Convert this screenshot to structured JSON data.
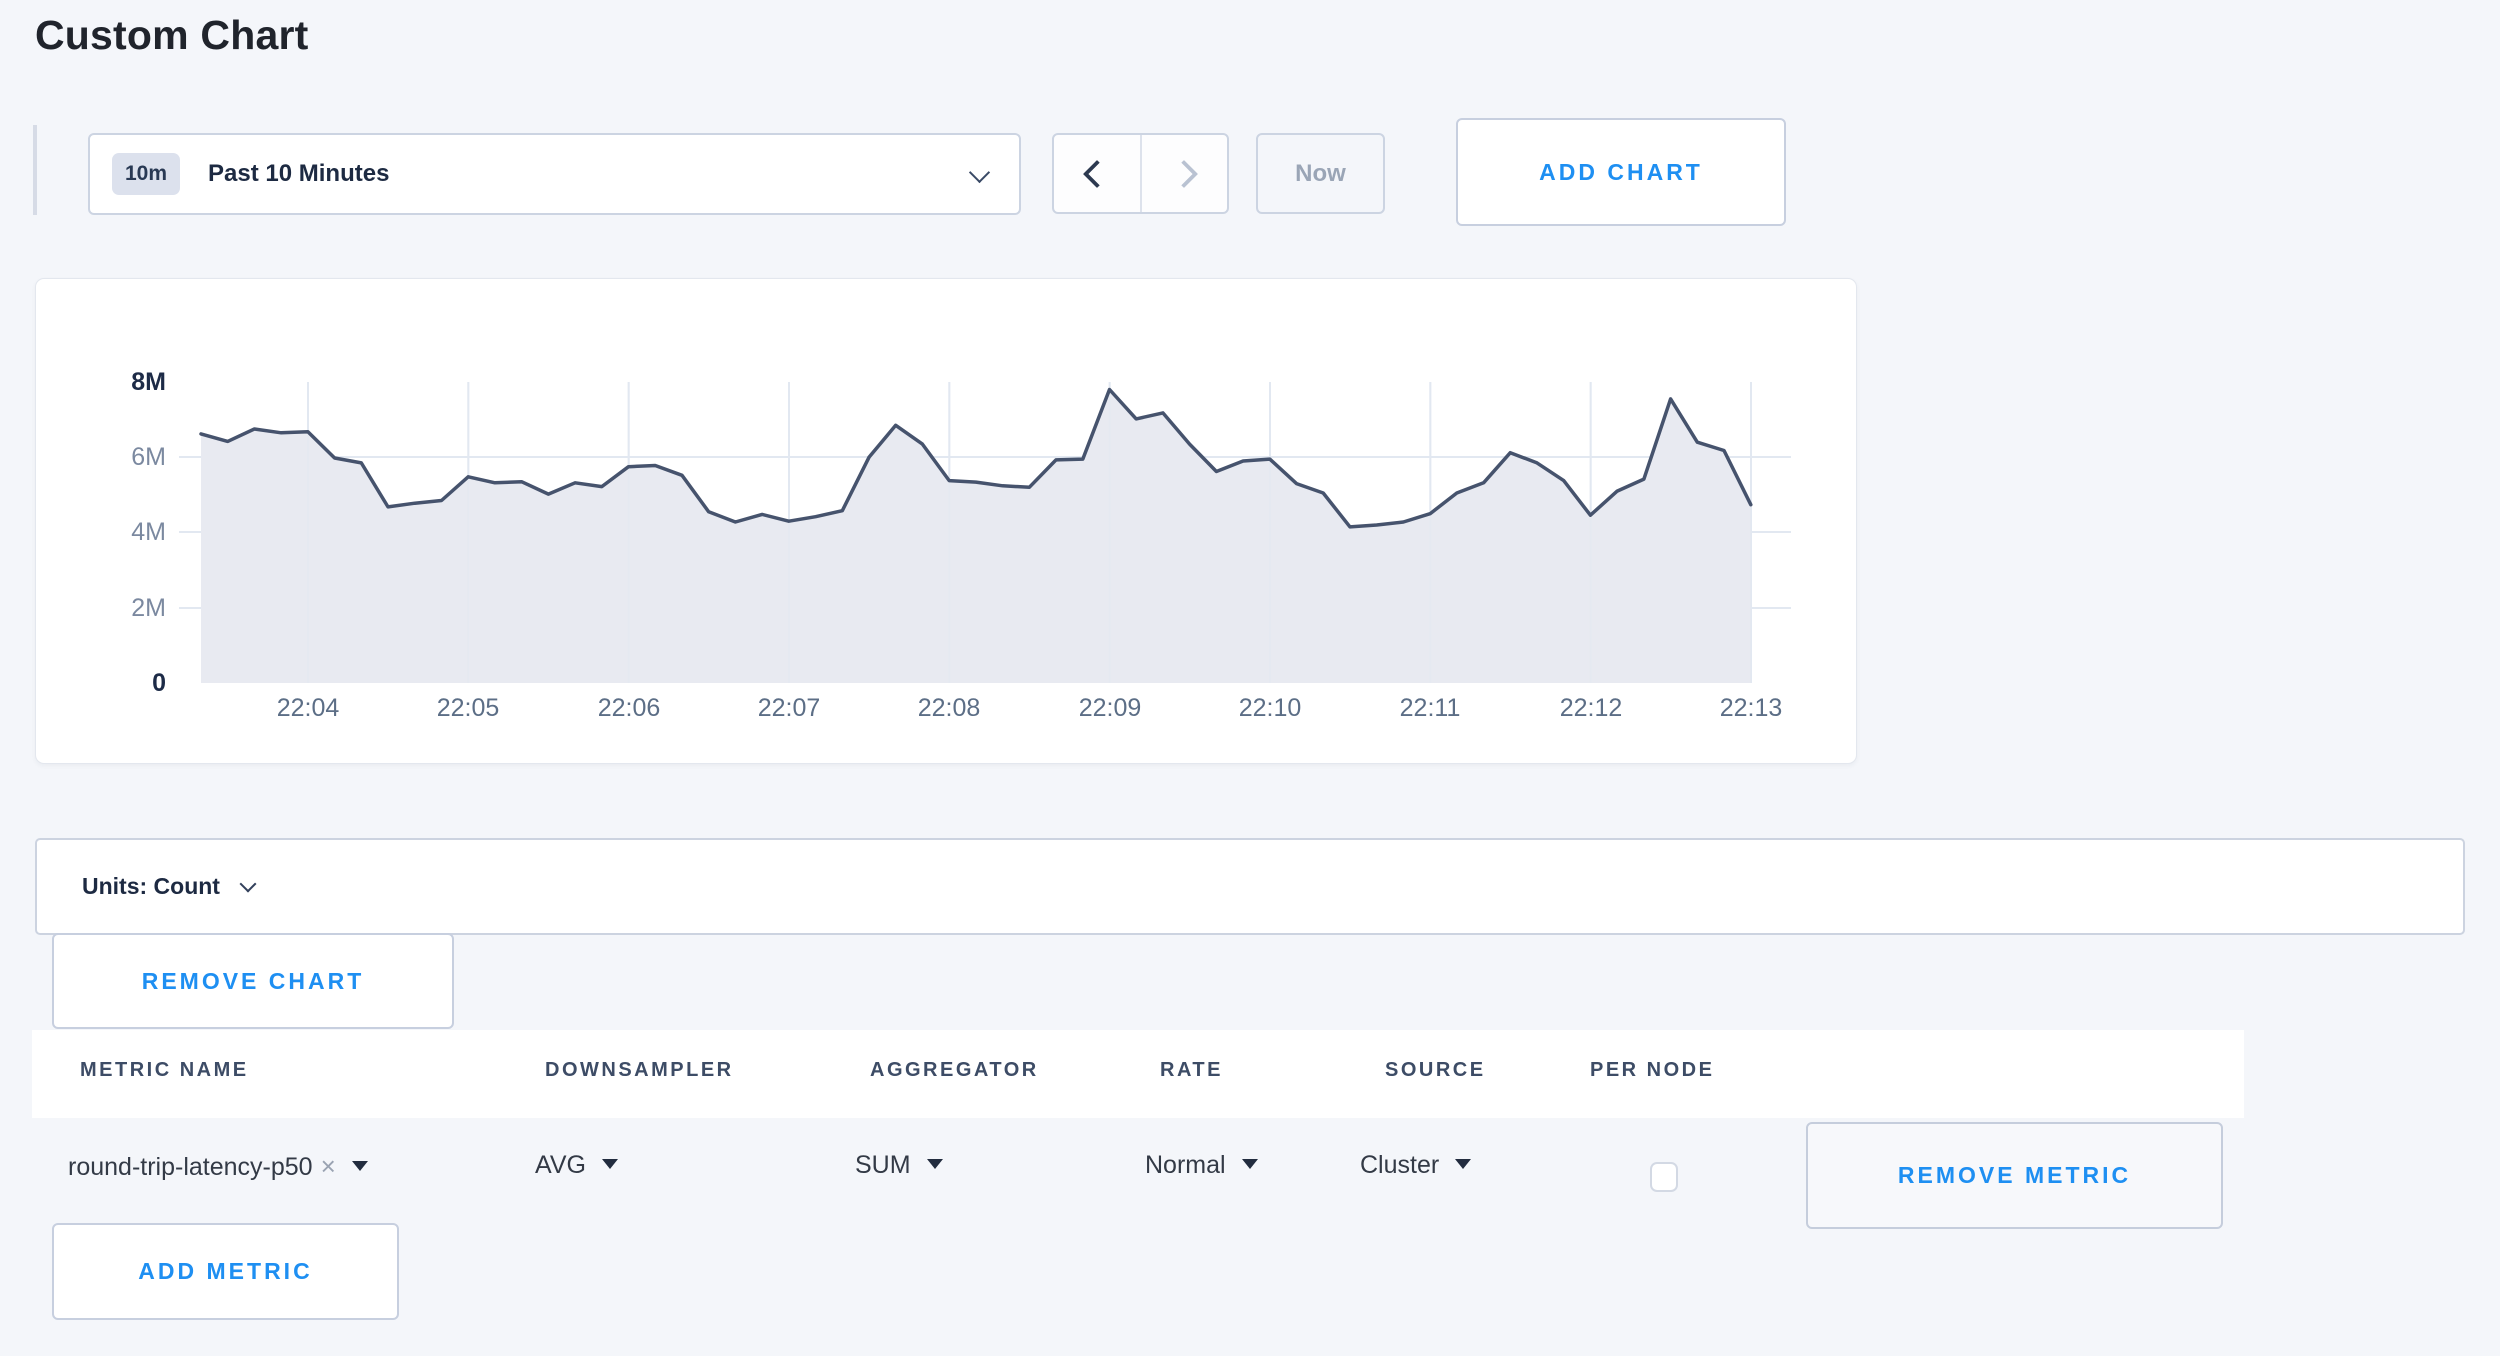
{
  "page": {
    "title": "Custom Chart"
  },
  "colors": {
    "accent": "#1e8ff2",
    "line": "#46536d",
    "fill": "#e8eaf1",
    "grid": "#e2e8f1"
  },
  "toolbar": {
    "range_badge": "10m",
    "range_label": "Past 10 Minutes",
    "now_label": "Now",
    "add_chart_label": "ADD CHART"
  },
  "chart_data": {
    "type": "area",
    "title": "",
    "xlabel": "",
    "ylabel": "",
    "unit": "Count",
    "ylim": [
      0,
      8000000
    ],
    "grid": true,
    "legend": "none",
    "y_ticks": [
      "0",
      "2M",
      "4M",
      "6M",
      "8M"
    ],
    "x_ticks": [
      "22:04",
      "22:05",
      "22:06",
      "22:07",
      "22:08",
      "22:09",
      "22:10",
      "22:11",
      "22:12",
      "22:13"
    ],
    "series": [
      {
        "name": "round-trip-latency-p50",
        "start_time": "22:03:20",
        "interval_seconds": 10,
        "values_millions": [
          6.62,
          6.42,
          6.75,
          6.65,
          6.68,
          5.98,
          5.85,
          4.68,
          4.78,
          4.85,
          5.48,
          5.32,
          5.35,
          5.02,
          5.32,
          5.22,
          5.75,
          5.78,
          5.52,
          4.55,
          4.28,
          4.48,
          4.3,
          4.42,
          4.58,
          6.0,
          6.85,
          6.35,
          5.38,
          5.34,
          5.24,
          5.2,
          5.93,
          5.95,
          7.8,
          7.02,
          7.18,
          6.35,
          5.62,
          5.9,
          5.95,
          5.3,
          5.05,
          4.15,
          4.2,
          4.28,
          4.5,
          5.05,
          5.32,
          6.12,
          5.85,
          5.38,
          4.46,
          5.1,
          5.42,
          7.55,
          6.4,
          6.18,
          4.74
        ]
      }
    ]
  },
  "units_bar": {
    "label": "Units: Count"
  },
  "chart_actions": {
    "remove_chart_label": "REMOVE CHART"
  },
  "metrics_table": {
    "headers": [
      "METRIC NAME",
      "DOWNSAMPLER",
      "AGGREGATOR",
      "RATE",
      "SOURCE",
      "PER NODE"
    ],
    "rows": [
      {
        "metric_name": "round-trip-latency-p50",
        "downsampler": "AVG",
        "aggregator": "SUM",
        "rate": "Normal",
        "source": "Cluster",
        "per_node_checked": false,
        "remove_label": "REMOVE METRIC"
      }
    ],
    "add_metric_label": "ADD METRIC"
  },
  "icons": {
    "clear": "×"
  }
}
